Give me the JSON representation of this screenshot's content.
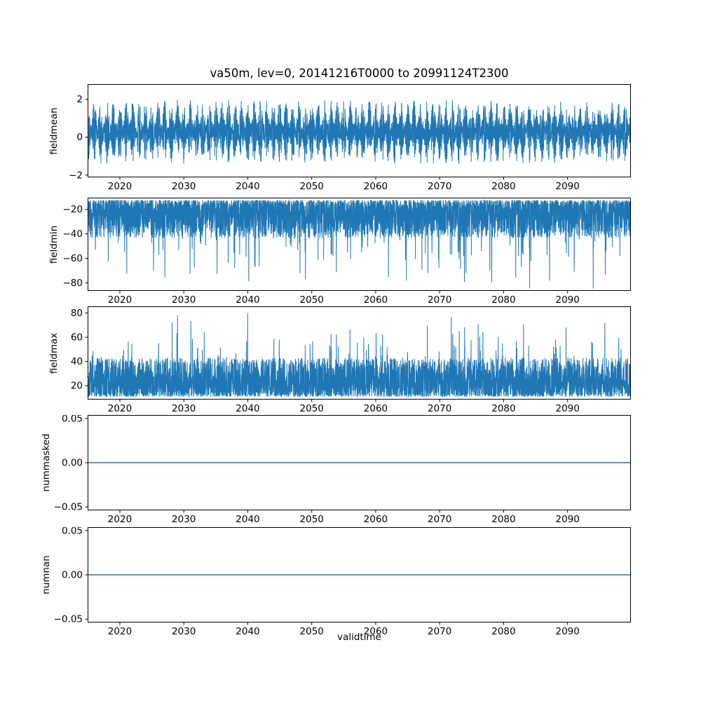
{
  "figure": {
    "title": "va50m, lev=0, 20141216T0000 to 20991124T2300",
    "xlabel": "validtime",
    "line_color": "#1f77b4",
    "background": "#ffffff",
    "x_range": [
      2014.96,
      2099.9
    ],
    "xtick_values": [
      2020,
      2030,
      2040,
      2050,
      2060,
      2070,
      2080,
      2090
    ],
    "xtick_labels": [
      "2020",
      "2030",
      "2040",
      "2050",
      "2060",
      "2070",
      "2080",
      "2090"
    ]
  },
  "chart_data": [
    {
      "type": "line",
      "name": "fieldmean",
      "ylabel": "fieldmean",
      "x_range": [
        2014.96,
        2099.9
      ],
      "ylim": [
        -2.12,
        2.8
      ],
      "ytick_values": [
        -2,
        0,
        2
      ],
      "ytick_labels": [
        "−2",
        "0",
        "2"
      ],
      "series": [
        {
          "name": "fieldmean",
          "summary": "Dense high-frequency time series with an annual-cycle envelope; values oscillate about +0.3, typical band −1.6 to +1.9, extreme min ≈ −2.2, extreme max ≈ +2.78 (spike near 2083)."
        }
      ],
      "render": {
        "kind": "mean-band",
        "seed": 101,
        "n": 4600
      }
    },
    {
      "type": "line",
      "name": "fieldmin",
      "ylabel": "fieldmin",
      "x_range": [
        2014.96,
        2099.9
      ],
      "ylim": [
        -86.5,
        -10.5
      ],
      "ytick_values": [
        -20,
        -40,
        -60,
        -80
      ],
      "ytick_labels": [
        "−20",
        "−40",
        "−60",
        "−80"
      ],
      "series": [
        {
          "name": "fieldmin",
          "summary": "Dense band from ≈ −12 down to ≈ −45 with frequent seasonal downward spikes reaching −60 to −85; deepest spike ≈ −85 near 2038."
        }
      ],
      "render": {
        "kind": "min-band",
        "seed": 202,
        "n": 4600
      }
    },
    {
      "type": "line",
      "name": "fieldmax",
      "ylabel": "fieldmax",
      "x_range": [
        2014.96,
        2099.9
      ],
      "ylim": [
        8.5,
        85.5
      ],
      "ytick_values": [
        20,
        40,
        60,
        80
      ],
      "ytick_labels": [
        "20",
        "40",
        "60",
        "80"
      ],
      "series": [
        {
          "name": "fieldmax",
          "summary": "Dense band from ≈ 10 up to ≈ 45 with frequent seasonal upward spikes reaching 55–80; highest spike ≈ 80 near 2048."
        }
      ],
      "render": {
        "kind": "max-band",
        "seed": 303,
        "n": 4600
      }
    },
    {
      "type": "line",
      "name": "nummasked",
      "ylabel": "nummasked",
      "x_range": [
        2014.96,
        2099.9
      ],
      "ylim": [
        -0.0538,
        0.0538
      ],
      "ytick_values": [
        -0.05,
        0,
        0.05
      ],
      "ytick_labels": [
        "−0.05",
        "0.00",
        "0.05"
      ],
      "series": [
        {
          "name": "nummasked",
          "summary": "Constant 0 for the whole period 2014-12-16 to 2099-11-24.",
          "constant_value": 0
        }
      ],
      "render": {
        "kind": "flat",
        "seed": 1,
        "n": 2
      }
    },
    {
      "type": "line",
      "name": "numnan",
      "ylabel": "numnan",
      "x_range": [
        2014.96,
        2099.9
      ],
      "ylim": [
        -0.0538,
        0.0538
      ],
      "ytick_values": [
        -0.05,
        0,
        0.05
      ],
      "ytick_labels": [
        "−0.05",
        "0.00",
        "0.05"
      ],
      "series": [
        {
          "name": "numnan",
          "summary": "Constant 0 for the whole period 2014-12-16 to 2099-11-24.",
          "constant_value": 0
        }
      ],
      "render": {
        "kind": "flat",
        "seed": 2,
        "n": 2
      }
    }
  ]
}
